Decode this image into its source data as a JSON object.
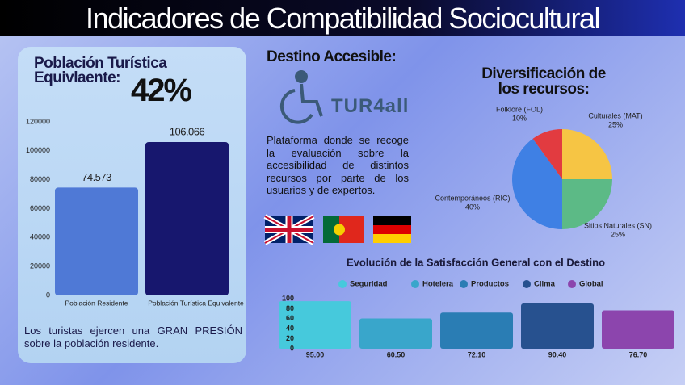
{
  "title": "Indicadores de Compatibilidad Sociocultural",
  "population_card": {
    "heading": "Población Turística Equivlaente:",
    "percent": "42%",
    "note": "Los turistas ejercen una GRAN PRESIÓN sobre la población residente."
  },
  "accessible": {
    "heading": "Destino Accesible:",
    "logo": "TUR4all",
    "description": "Plataforma donde se recoge la evaluación sobre la accesibilidad de distintos recursos por parte de los usuarios y de expertos."
  },
  "chart_data": [
    {
      "type": "bar",
      "categories": [
        "Población Residente",
        "Población Turística Equivalente"
      ],
      "values": [
        74573,
        106066
      ],
      "value_labels": [
        "74.573",
        "106.066"
      ],
      "colors": [
        "#4f79d6",
        "#17176e"
      ],
      "ylim": [
        0,
        120000
      ],
      "yticks": [
        0,
        20000,
        40000,
        60000,
        80000,
        100000,
        120000
      ]
    },
    {
      "type": "pie",
      "title": "Diversificación de los recursos:",
      "categories": [
        "Culturales (MAT)",
        "Sitios Naturales (SN)",
        "Contemporáneos (RIC)",
        "Folklore (FOL)"
      ],
      "values": [
        25,
        25,
        40,
        10
      ],
      "value_labels": [
        "25%",
        "25%",
        "40%",
        "10%"
      ],
      "colors": [
        "#f6c544",
        "#5cba86",
        "#3f80e4",
        "#e23b40"
      ]
    },
    {
      "type": "bar",
      "title": "Evolución de la Satisfacción General con el Destino",
      "categories": [
        "Seguridad",
        "Hotelera",
        "Productos",
        "Clima",
        "Global"
      ],
      "values": [
        95,
        60.5,
        72.1,
        90.4,
        76.7
      ],
      "value_labels": [
        "95.00",
        "60.50",
        "72.10",
        "90.40",
        "76.70"
      ],
      "colors": [
        "#46c9dc",
        "#39a6cb",
        "#2a7db4",
        "#27518f",
        "#8c45ad"
      ],
      "ylim": [
        0,
        100
      ],
      "yticks": [
        0,
        20,
        40,
        60,
        80,
        100
      ]
    }
  ]
}
